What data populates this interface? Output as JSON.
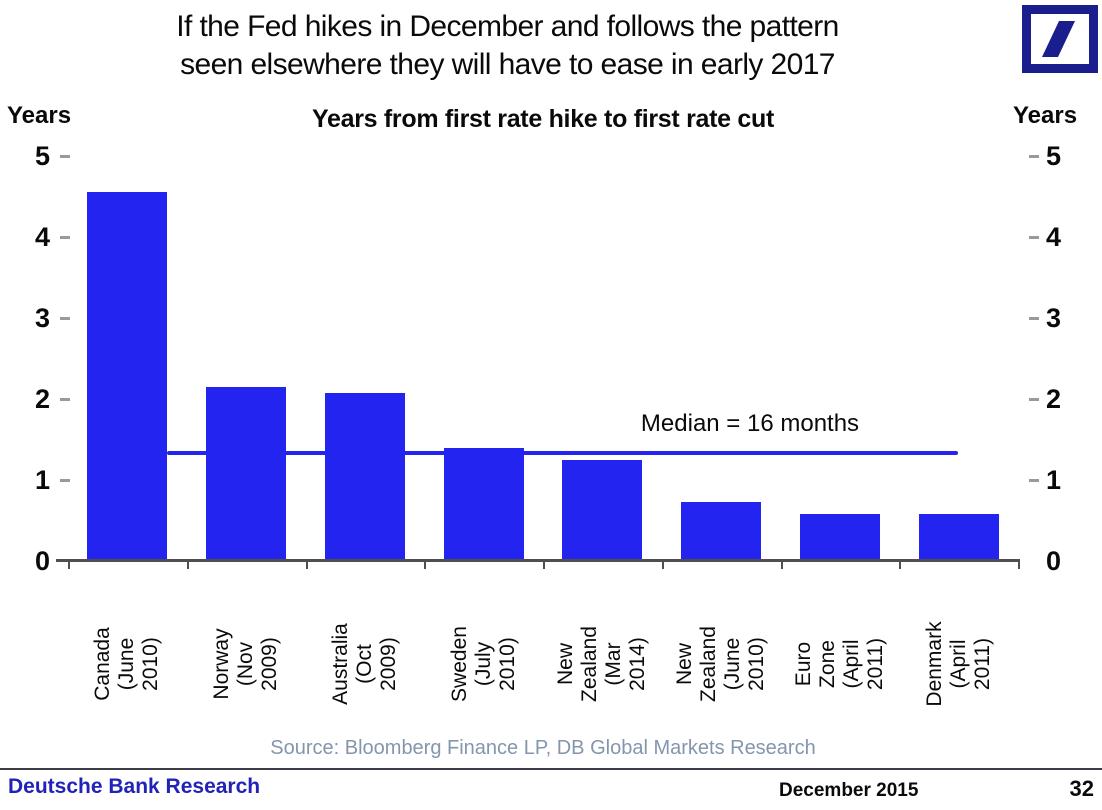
{
  "header": {
    "title_lines": [
      "If the Fed hikes in December and follows the pattern",
      "seen elsewhere they will have to ease in early 2017"
    ]
  },
  "logo": {
    "name": "Deutsche Bank logo",
    "color": "#1a1e8c"
  },
  "chart_data": {
    "type": "bar",
    "title": "Years from first rate hike to first rate cut",
    "y_unit_label": "Years",
    "categories": [
      "Canada\n(June 2010)",
      "Norway\n(Nov 2009)",
      "Australia\n(Oct 2009)",
      "Sweden\n(July 2010)",
      "New\nZealand\n(Mar 2014)",
      "New\nZealand\n(June 2010)",
      "Euro Zone\n(April 2011)",
      "Denmark\n(April 2011)"
    ],
    "values": [
      4.55,
      2.15,
      2.08,
      1.4,
      1.25,
      0.73,
      0.58,
      0.58
    ],
    "ylim": [
      0,
      5
    ],
    "yticks": [
      0,
      1,
      2,
      3,
      4,
      5
    ],
    "grid": false,
    "bar_color": "#2424f0",
    "median": {
      "label": "Median = 16 months",
      "months": 16,
      "years": 1.33
    }
  },
  "source": {
    "text": "Source: Bloomberg Finance LP, DB Global Markets Research"
  },
  "footer": {
    "brand": "Deutsche Bank Research",
    "date": "December 2015",
    "page": "32"
  }
}
